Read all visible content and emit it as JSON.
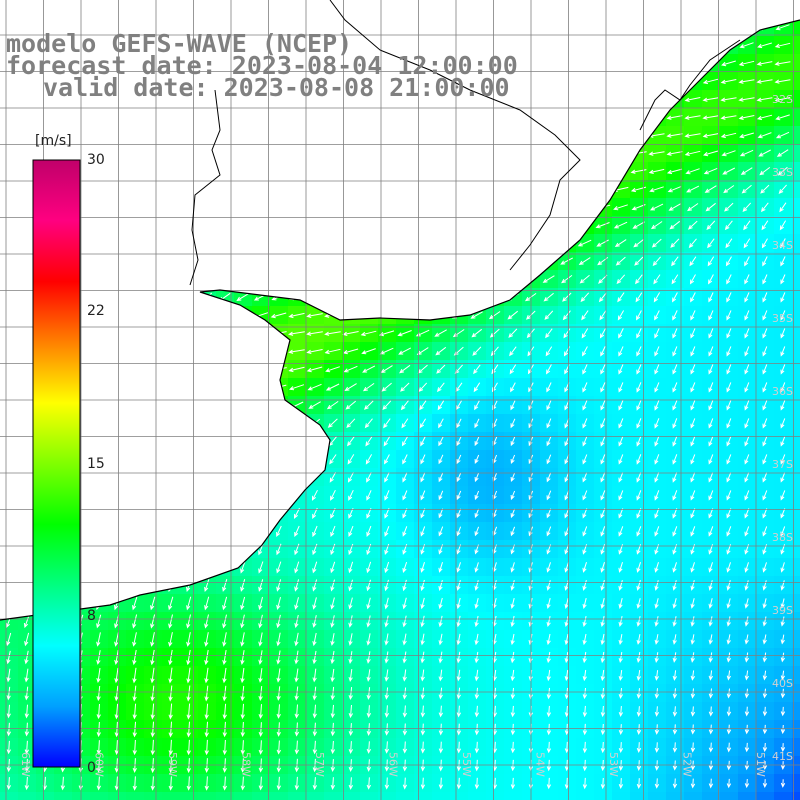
{
  "title": {
    "line1": "modelo GEFS-WAVE (NCEP)",
    "line2": "forecast date: 2023-08-04 12:00:00",
    "line3": "valid date: 2023-08-08 21:00:00"
  },
  "colorbar": {
    "unit": "[m/s]",
    "min": 0,
    "max": 30,
    "tick_labels": [
      "30",
      "22",
      "15",
      "8",
      "0"
    ],
    "tick_values": [
      30,
      22,
      15,
      8,
      0
    ],
    "colors": [
      "#0000ff",
      "#00a0ff",
      "#00ffff",
      "#00ff80",
      "#00ff00",
      "#80ff00",
      "#ffff00",
      "#ff8000",
      "#ff0000",
      "#ff0080",
      "#c0006a"
    ]
  },
  "axes": {
    "lon_labels": [
      "61W",
      "60W",
      "59W",
      "58W",
      "57W",
      "56W",
      "55W",
      "54W",
      "53W",
      "52W",
      "51W"
    ],
    "lon_values": [
      -61,
      -60,
      -59,
      -58,
      -57,
      -56,
      -55,
      -54,
      -53,
      -52,
      -51
    ],
    "lat_labels": [
      "32S",
      "33S",
      "34S",
      "35S",
      "36S",
      "37S",
      "38S",
      "39S",
      "40S",
      "41S"
    ],
    "lat_values": [
      -32,
      -33,
      -34,
      -35,
      -36,
      -37,
      -38,
      -39,
      -40,
      -41
    ],
    "grid_color": "#7f7f7f",
    "label_color": "#d0d0d0"
  },
  "field": {
    "variable": "wind speed",
    "units": "m/s",
    "description_of_regimes": "strong ENE winds near northern coast, weaker flow over central basin, strong southward flow near southern coast",
    "coast_color": "#000000"
  }
}
